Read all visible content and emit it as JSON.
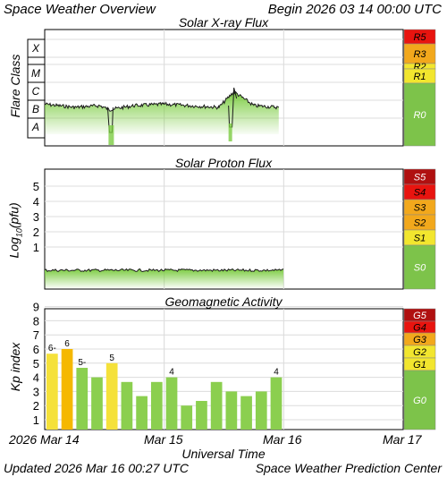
{
  "header": {
    "title": "Space Weather Overview",
    "begin": "Begin 2026 03 14 00:00 UTC"
  },
  "footer": {
    "updated": "Updated 2026 Mar 16 00:27 UTC",
    "center": "Space Weather Prediction Center"
  },
  "colors": {
    "flux_green": "#7ccc42",
    "kp_green": "#8bcf4f",
    "kp_yellow": "#f5e13a",
    "kp_orange": "#f5b800",
    "scale_green": "#7dc34a",
    "scale_yellow": "#f2e62e",
    "scale_orange": "#f2a81c",
    "scale_redorange": "#f05a14",
    "scale_red": "#e8140f",
    "scale_darkred": "#b01010"
  },
  "chart_data": [
    {
      "type": "area",
      "title": "Solar X-ray Flux",
      "ylabel": "Flare Class",
      "y_scale": "log",
      "classes": [
        "X",
        "M",
        "C",
        "B",
        "A"
      ],
      "x": [
        "2026-03-14 00:00",
        "2026-03-14 06:00",
        "2026-03-14 11:00",
        "2026-03-14 13:00",
        "2026-03-14 18:00",
        "2026-03-15 00:00",
        "2026-03-15 05:00",
        "2026-03-15 11:00",
        "2026-03-15 14:00",
        "2026-03-15 18:00",
        "2026-03-15 23:00"
      ],
      "series": [
        {
          "values": [
            "B6",
            "B4",
            "B5",
            "B3",
            "B5",
            "B6",
            "B5",
            "B4",
            "C3",
            "B5",
            "B4"
          ]
        }
      ],
      "scale_labels": [
        "R5",
        "R3",
        "R1",
        "R0"
      ]
    },
    {
      "type": "area",
      "title": "Solar Proton Flux",
      "ylabel": "Log₁₀(pfu)",
      "yticks": [
        1,
        2,
        3,
        4,
        5
      ],
      "ylim": [
        -2,
        5.6
      ],
      "x": [
        "2026-03-14 00:00",
        "2026-03-15 00:00",
        "2026-03-16 00:00"
      ],
      "series": [
        {
          "values": [
            -1.3,
            -1.3,
            -1.3
          ]
        }
      ],
      "scale_labels": [
        "S5",
        "S4",
        "S3",
        "S2",
        "S1",
        "S0"
      ]
    },
    {
      "type": "bar",
      "title": "Geomagnetic Activity",
      "ylabel": "Kp index",
      "yticks": [
        1,
        2,
        3,
        4,
        5,
        6,
        7,
        8,
        9
      ],
      "ylim": [
        0,
        9
      ],
      "categories": [
        "03-14 00",
        "03-14 03",
        "03-14 06",
        "03-14 09",
        "03-14 12",
        "03-14 15",
        "03-14 18",
        "03-14 21",
        "03-15 00",
        "03-15 03",
        "03-15 06",
        "03-15 09",
        "03-15 12",
        "03-15 15",
        "03-15 18",
        "03-15 21"
      ],
      "values": [
        5.67,
        6.0,
        4.67,
        4.0,
        5.0,
        3.67,
        2.67,
        3.67,
        4.0,
        2.0,
        2.33,
        3.67,
        3.0,
        2.67,
        3.0,
        4.0
      ],
      "bar_labels": [
        "6-",
        "6",
        "5-",
        "",
        "5",
        "",
        "",
        "",
        "4",
        "",
        "",
        "",
        "",
        "",
        "",
        "4"
      ],
      "scale_labels": [
        "G5",
        "G4",
        "G3",
        "G2",
        "G1",
        "G0"
      ]
    }
  ],
  "xaxis": {
    "title": "Universal Time",
    "ticks": [
      "2026 Mar 14",
      "Mar 15",
      "Mar 16",
      "Mar 17"
    ]
  }
}
